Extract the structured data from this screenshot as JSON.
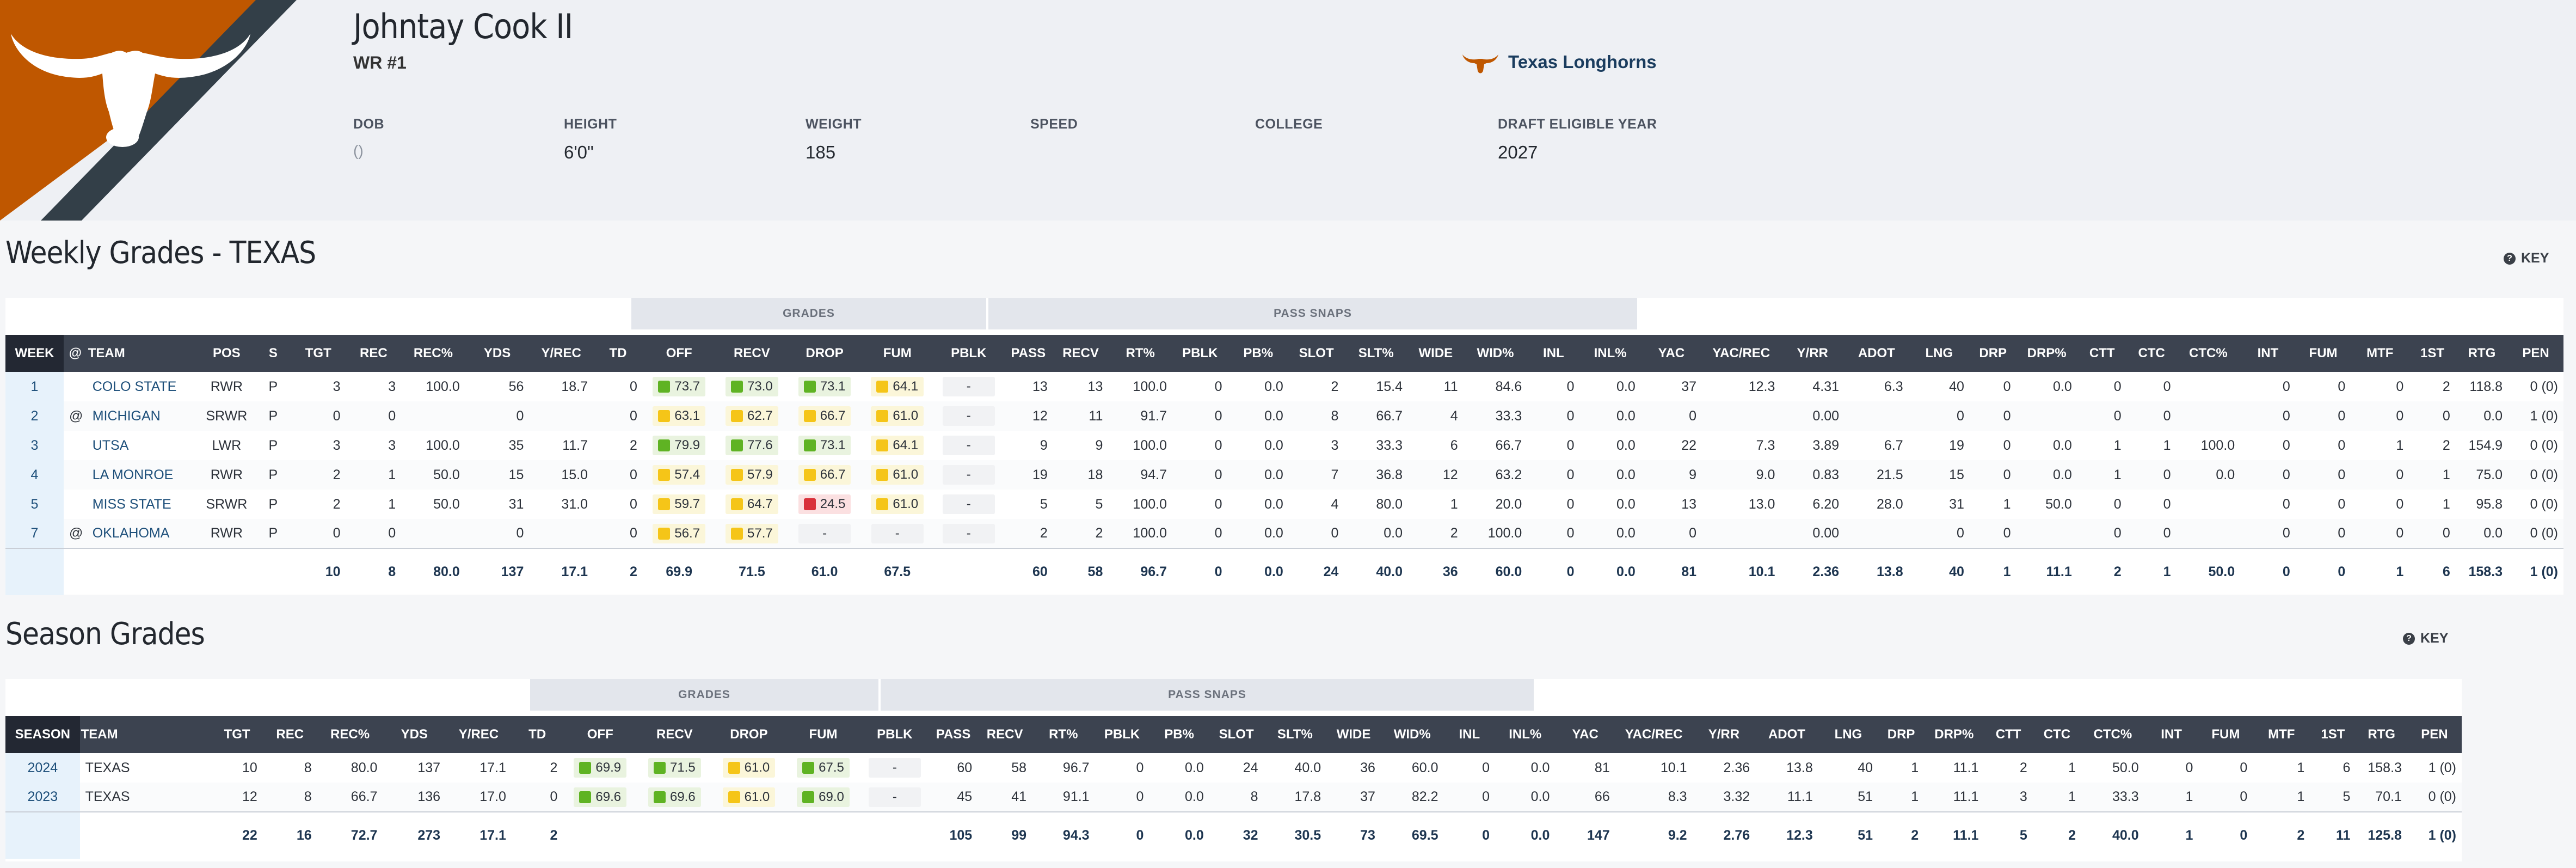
{
  "player": {
    "name": "Johntay Cook II",
    "position": "WR #1",
    "team": "Texas Longhorns",
    "bio": [
      {
        "label": "DOB",
        "value": "()",
        "muted": true
      },
      {
        "label": "HEIGHT",
        "value": "6'0\""
      },
      {
        "label": "WEIGHT",
        "value": "185"
      },
      {
        "label": "SPEED",
        "value": ""
      },
      {
        "label": "COLLEGE",
        "value": ""
      },
      {
        "label": "DRAFT ELIGIBLE YEAR",
        "value": "2027"
      }
    ]
  },
  "colors": {
    "brand": "#bf5700",
    "dark": "#333f48",
    "green": "#5fb323",
    "yellow": "#f5c518",
    "red": "#d9303a"
  },
  "weekly": {
    "title": "Weekly Grades - TEXAS",
    "key_label": "KEY",
    "grades_band": "GRADES",
    "snaps_band": "PASS SNAPS",
    "headers": [
      "WEEK",
      "@",
      "TEAM",
      "POS",
      "S",
      "TGT",
      "REC",
      "REC%",
      "YDS",
      "Y/REC",
      "TD",
      "OFF",
      "RECV",
      "DROP",
      "FUM",
      "PBLK",
      "PASS",
      "RECV",
      "RT%",
      "PBLK",
      "PB%",
      "SLOT",
      "SLT%",
      "WIDE",
      "WID%",
      "INL",
      "INL%",
      "YAC",
      "YAC/REC",
      "Y/RR",
      "ADOT",
      "LNG",
      "DRP",
      "DRP%",
      "CTT",
      "CTC",
      "CTC%",
      "INT",
      "FUM",
      "MTF",
      "1ST",
      "RTG",
      "PEN"
    ],
    "rows": [
      [
        "1",
        "",
        "COLO STATE",
        "RWR",
        "P",
        "3",
        "3",
        "100.0",
        "56",
        "18.7",
        "0",
        {
          "v": "73.7",
          "c": "green"
        },
        {
          "v": "73.0",
          "c": "green"
        },
        {
          "v": "73.1",
          "c": "green"
        },
        {
          "v": "64.1",
          "c": "yellow"
        },
        {
          "v": "-",
          "c": "none"
        },
        "13",
        "13",
        "100.0",
        "0",
        "0.0",
        "2",
        "15.4",
        "11",
        "84.6",
        "0",
        "0.0",
        "37",
        "12.3",
        "4.31",
        "6.3",
        "40",
        "0",
        "0.0",
        "0",
        "0",
        "",
        "0",
        "0",
        "0",
        "2",
        "118.8",
        "0 (0)"
      ],
      [
        "2",
        "@",
        "MICHIGAN",
        "SRWR",
        "P",
        "0",
        "0",
        "",
        "0",
        "",
        "0",
        {
          "v": "63.1",
          "c": "yellow"
        },
        {
          "v": "62.7",
          "c": "yellow"
        },
        {
          "v": "66.7",
          "c": "yellow"
        },
        {
          "v": "61.0",
          "c": "yellow"
        },
        {
          "v": "-",
          "c": "none"
        },
        "12",
        "11",
        "91.7",
        "0",
        "0.0",
        "8",
        "66.7",
        "4",
        "33.3",
        "0",
        "0.0",
        "0",
        "",
        "0.00",
        "",
        "0",
        "0",
        "",
        "0",
        "0",
        "",
        "0",
        "0",
        "0",
        "0",
        "0.0",
        "1 (0)"
      ],
      [
        "3",
        "",
        "UTSA",
        "LWR",
        "P",
        "3",
        "3",
        "100.0",
        "35",
        "11.7",
        "2",
        {
          "v": "79.9",
          "c": "green"
        },
        {
          "v": "77.6",
          "c": "green"
        },
        {
          "v": "73.1",
          "c": "green"
        },
        {
          "v": "64.1",
          "c": "yellow"
        },
        {
          "v": "-",
          "c": "none"
        },
        "9",
        "9",
        "100.0",
        "0",
        "0.0",
        "3",
        "33.3",
        "6",
        "66.7",
        "0",
        "0.0",
        "22",
        "7.3",
        "3.89",
        "6.7",
        "19",
        "0",
        "0.0",
        "1",
        "1",
        "100.0",
        "0",
        "0",
        "1",
        "2",
        "154.9",
        "0 (0)"
      ],
      [
        "4",
        "",
        "LA MONROE",
        "RWR",
        "P",
        "2",
        "1",
        "50.0",
        "15",
        "15.0",
        "0",
        {
          "v": "57.4",
          "c": "yellow"
        },
        {
          "v": "57.9",
          "c": "yellow"
        },
        {
          "v": "66.7",
          "c": "yellow"
        },
        {
          "v": "61.0",
          "c": "yellow"
        },
        {
          "v": "-",
          "c": "none"
        },
        "19",
        "18",
        "94.7",
        "0",
        "0.0",
        "7",
        "36.8",
        "12",
        "63.2",
        "0",
        "0.0",
        "9",
        "9.0",
        "0.83",
        "21.5",
        "15",
        "0",
        "0.0",
        "1",
        "0",
        "0.0",
        "0",
        "0",
        "0",
        "1",
        "75.0",
        "0 (0)"
      ],
      [
        "5",
        "",
        "MISS STATE",
        "SRWR",
        "P",
        "2",
        "1",
        "50.0",
        "31",
        "31.0",
        "0",
        {
          "v": "59.7",
          "c": "yellow"
        },
        {
          "v": "64.7",
          "c": "yellow"
        },
        {
          "v": "24.5",
          "c": "red"
        },
        {
          "v": "61.0",
          "c": "yellow"
        },
        {
          "v": "-",
          "c": "none"
        },
        "5",
        "5",
        "100.0",
        "0",
        "0.0",
        "4",
        "80.0",
        "1",
        "20.0",
        "0",
        "0.0",
        "13",
        "13.0",
        "6.20",
        "28.0",
        "31",
        "1",
        "50.0",
        "0",
        "0",
        "",
        "0",
        "0",
        "0",
        "1",
        "95.8",
        "0 (0)"
      ],
      [
        "7",
        "@",
        "OKLAHOMA",
        "RWR",
        "P",
        "0",
        "0",
        "",
        "0",
        "",
        "0",
        {
          "v": "56.7",
          "c": "yellow"
        },
        {
          "v": "57.7",
          "c": "yellow"
        },
        {
          "v": "-",
          "c": "none"
        },
        {
          "v": "-",
          "c": "none"
        },
        {
          "v": "-",
          "c": "none"
        },
        "2",
        "2",
        "100.0",
        "0",
        "0.0",
        "0",
        "0.0",
        "2",
        "100.0",
        "0",
        "0.0",
        "0",
        "",
        "0.00",
        "",
        "0",
        "0",
        "",
        "0",
        "0",
        "",
        "0",
        "0",
        "0",
        "0",
        "0.0",
        "0 (0)"
      ]
    ],
    "totals": [
      "",
      "",
      "",
      "",
      "",
      "10",
      "8",
      "80.0",
      "137",
      "17.1",
      "2",
      "69.9",
      "71.5",
      "61.0",
      "67.5",
      "",
      "60",
      "58",
      "96.7",
      "0",
      "0.0",
      "24",
      "40.0",
      "36",
      "60.0",
      "0",
      "0.0",
      "81",
      "10.1",
      "2.36",
      "13.8",
      "40",
      "1",
      "11.1",
      "2",
      "1",
      "50.0",
      "0",
      "0",
      "1",
      "6",
      "158.3",
      "1 (0)"
    ]
  },
  "season": {
    "title": "Season Grades",
    "key_label": "KEY",
    "grades_band": "GRADES",
    "snaps_band": "PASS SNAPS",
    "headers": [
      "SEASON",
      "TEAM",
      "TGT",
      "REC",
      "REC%",
      "YDS",
      "Y/REC",
      "TD",
      "OFF",
      "RECV",
      "DROP",
      "FUM",
      "PBLK",
      "PASS",
      "RECV",
      "RT%",
      "PBLK",
      "PB%",
      "SLOT",
      "SLT%",
      "WIDE",
      "WID%",
      "INL",
      "INL%",
      "YAC",
      "YAC/REC",
      "Y/RR",
      "ADOT",
      "LNG",
      "DRP",
      "DRP%",
      "CTT",
      "CTC",
      "CTC%",
      "INT",
      "FUM",
      "MTF",
      "1ST",
      "RTG",
      "PEN"
    ],
    "rows": [
      [
        "2024",
        "TEXAS",
        "10",
        "8",
        "80.0",
        "137",
        "17.1",
        "2",
        {
          "v": "69.9",
          "c": "green"
        },
        {
          "v": "71.5",
          "c": "green"
        },
        {
          "v": "61.0",
          "c": "yellow"
        },
        {
          "v": "67.5",
          "c": "green"
        },
        {
          "v": "-",
          "c": "none"
        },
        "60",
        "58",
        "96.7",
        "0",
        "0.0",
        "24",
        "40.0",
        "36",
        "60.0",
        "0",
        "0.0",
        "81",
        "10.1",
        "2.36",
        "13.8",
        "40",
        "1",
        "11.1",
        "2",
        "1",
        "50.0",
        "0",
        "0",
        "1",
        "6",
        "158.3",
        "1 (0)"
      ],
      [
        "2023",
        "TEXAS",
        "12",
        "8",
        "66.7",
        "136",
        "17.0",
        "0",
        {
          "v": "69.6",
          "c": "green"
        },
        {
          "v": "69.6",
          "c": "green"
        },
        {
          "v": "61.0",
          "c": "yellow"
        },
        {
          "v": "69.0",
          "c": "green"
        },
        {
          "v": "-",
          "c": "none"
        },
        "45",
        "41",
        "91.1",
        "0",
        "0.0",
        "8",
        "17.8",
        "37",
        "82.2",
        "0",
        "0.0",
        "66",
        "8.3",
        "3.32",
        "11.1",
        "51",
        "1",
        "11.1",
        "3",
        "1",
        "33.3",
        "1",
        "0",
        "1",
        "5",
        "70.1",
        "0 (0)"
      ]
    ],
    "totals": [
      "",
      "",
      "22",
      "16",
      "72.7",
      "273",
      "17.1",
      "2",
      "",
      "",
      "",
      "",
      "",
      "105",
      "99",
      "94.3",
      "0",
      "0.0",
      "32",
      "30.5",
      "73",
      "69.5",
      "0",
      "0.0",
      "147",
      "9.2",
      "2.76",
      "12.3",
      "51",
      "2",
      "11.1",
      "5",
      "2",
      "40.0",
      "1",
      "0",
      "2",
      "11",
      "125.8",
      "1 (0)"
    ]
  }
}
